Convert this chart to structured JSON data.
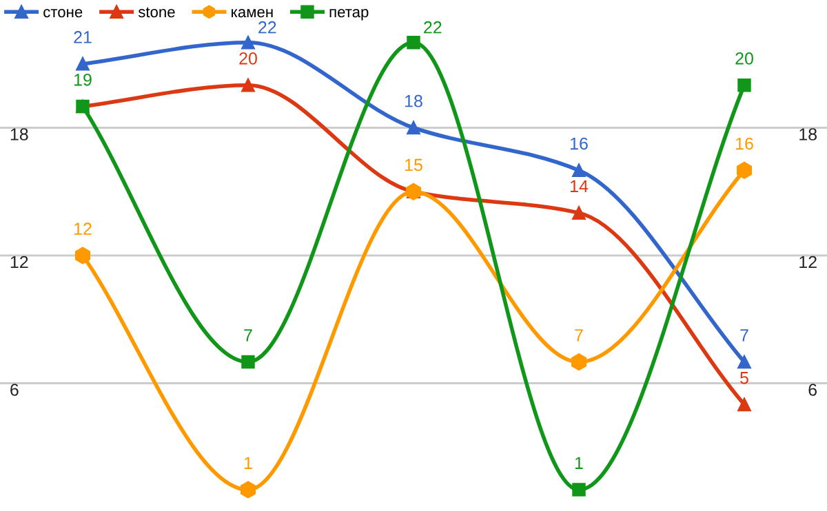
{
  "chart_data": {
    "type": "line",
    "categories": [
      null,
      null,
      null,
      null,
      null
    ],
    "series": [
      {
        "name": "стоне",
        "color": "#3366cc",
        "marker": "triangle",
        "values": [
          21,
          22,
          18,
          16,
          7
        ]
      },
      {
        "name": "stone",
        "color": "#dc3912",
        "marker": "triangle",
        "values": [
          19,
          20,
          15,
          14,
          5
        ],
        "value_labels": [
          null,
          "20",
          null,
          "14",
          "5"
        ]
      },
      {
        "name": "камен",
        "color": "#ff9900",
        "marker": "circle",
        "values": [
          12,
          1,
          15,
          7,
          16
        ]
      },
      {
        "name": "петар",
        "color": "#109618",
        "marker": "square",
        "values": [
          19,
          7,
          22,
          1,
          20
        ]
      }
    ],
    "ylim": [
      0,
      24
    ],
    "yticks": [
      6,
      12,
      18
    ],
    "y2lim": [
      0,
      24
    ],
    "y2ticks": [
      6,
      12,
      18
    ],
    "grid": "y",
    "legend": "top left",
    "data_labels": true,
    "line_style": "solid"
  }
}
